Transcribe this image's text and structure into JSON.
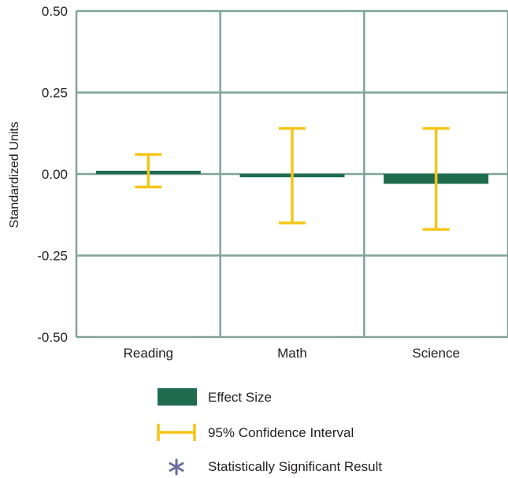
{
  "chart_data": {
    "type": "bar",
    "categories": [
      "Reading",
      "Math",
      "Science"
    ],
    "series": [
      {
        "name": "Effect Size",
        "values": [
          0.01,
          -0.01,
          -0.03
        ],
        "ci_low": [
          -0.04,
          -0.15,
          -0.17
        ],
        "ci_high": [
          0.06,
          0.14,
          0.14
        ]
      }
    ],
    "ylabel": "Standardized Units",
    "ylim": [
      -0.5,
      0.5
    ],
    "yticks": [
      "0.50",
      "0.25",
      "0.00",
      "-0.25",
      "-0.50"
    ],
    "ytick_values": [
      0.5,
      0.25,
      0,
      -0.25,
      -0.5
    ],
    "grid": true,
    "legend": {
      "placement": "bottom",
      "items": [
        {
          "label": "Effect Size",
          "symbol": "bar"
        },
        {
          "label": "95% Confidence Interval",
          "symbol": "errorbar"
        },
        {
          "label": "Statistically Significant Result",
          "symbol": "asterisk"
        }
      ]
    },
    "colors": {
      "bar": "#1f6b4e",
      "ci": "#f5c518",
      "grid": "#7fa397",
      "asterisk": "#6a6c9e"
    }
  }
}
